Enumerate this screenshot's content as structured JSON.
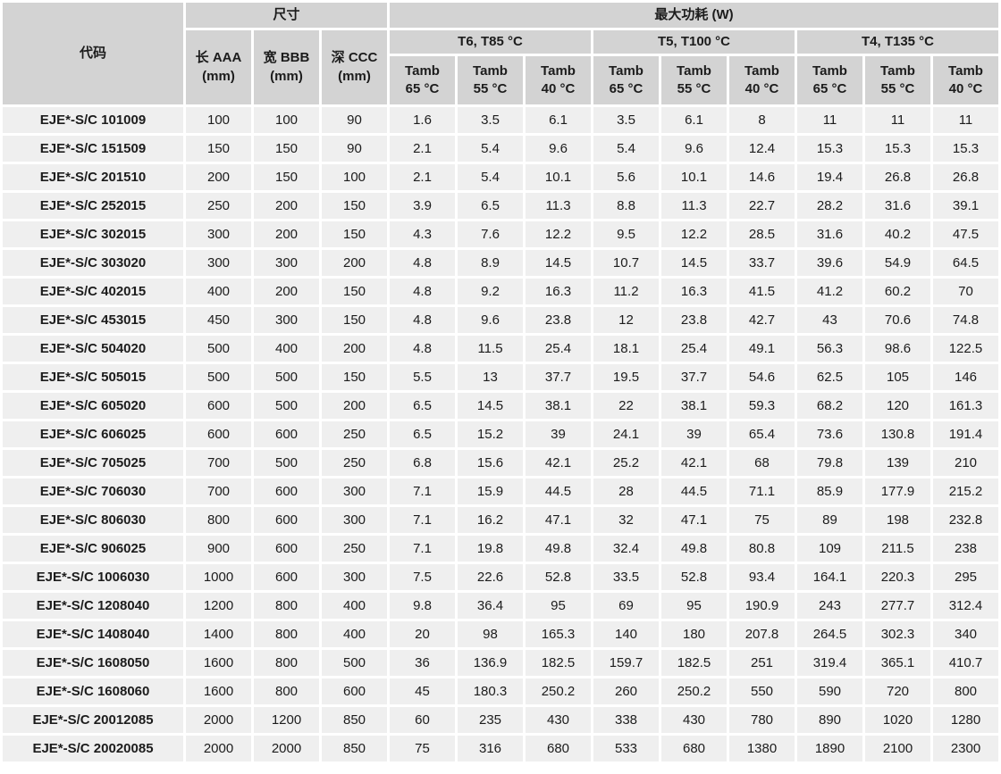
{
  "colors": {
    "header_bg": "#d3d3d3",
    "cell_bg": "#efefef",
    "gutter": "#ffffff",
    "text": "#1c1c1c"
  },
  "table": {
    "header": {
      "code": "代码",
      "dimensions": "尺寸",
      "max_power": "最大功耗 (W)",
      "dim_cols": [
        {
          "line1": "长 AAA",
          "line2": "(mm)"
        },
        {
          "line1": "宽 BBB",
          "line2": "(mm)"
        },
        {
          "line1": "深  CCC",
          "line2": "(mm)"
        }
      ],
      "temp_groups": [
        "T6, T85 °C",
        "T5, T100 °C",
        "T4, T135 °C"
      ],
      "tamb_label": "Tamb",
      "tamb_temps": [
        "65 °C",
        "55 °C",
        "40 °C"
      ]
    },
    "rows": [
      {
        "code": "EJE*-S/C 101009",
        "dims": [
          100,
          100,
          90
        ],
        "values": [
          1.6,
          3.5,
          6.1,
          3.5,
          6.1,
          8,
          11,
          11,
          11
        ]
      },
      {
        "code": "EJE*-S/C 151509",
        "dims": [
          150,
          150,
          90
        ],
        "values": [
          2.1,
          5.4,
          9.6,
          5.4,
          9.6,
          12.4,
          15.3,
          15.3,
          15.3
        ]
      },
      {
        "code": "EJE*-S/C 201510",
        "dims": [
          200,
          150,
          100
        ],
        "values": [
          2.1,
          5.4,
          10.1,
          5.6,
          10.1,
          14.6,
          19.4,
          26.8,
          26.8
        ]
      },
      {
        "code": "EJE*-S/C 252015",
        "dims": [
          250,
          200,
          150
        ],
        "values": [
          3.9,
          6.5,
          11.3,
          8.8,
          11.3,
          22.7,
          28.2,
          31.6,
          39.1
        ]
      },
      {
        "code": "EJE*-S/C 302015",
        "dims": [
          300,
          200,
          150
        ],
        "values": [
          4.3,
          7.6,
          12.2,
          9.5,
          12.2,
          28.5,
          31.6,
          40.2,
          47.5
        ]
      },
      {
        "code": "EJE*-S/C 303020",
        "dims": [
          300,
          300,
          200
        ],
        "values": [
          4.8,
          8.9,
          14.5,
          10.7,
          14.5,
          33.7,
          39.6,
          54.9,
          64.5
        ]
      },
      {
        "code": "EJE*-S/C 402015",
        "dims": [
          400,
          200,
          150
        ],
        "values": [
          4.8,
          9.2,
          16.3,
          11.2,
          16.3,
          41.5,
          41.2,
          60.2,
          70
        ]
      },
      {
        "code": "EJE*-S/C 453015",
        "dims": [
          450,
          300,
          150
        ],
        "values": [
          4.8,
          9.6,
          23.8,
          12,
          23.8,
          42.7,
          43,
          70.6,
          74.8
        ]
      },
      {
        "code": "EJE*-S/C 504020",
        "dims": [
          500,
          400,
          200
        ],
        "values": [
          4.8,
          11.5,
          25.4,
          18.1,
          25.4,
          49.1,
          56.3,
          98.6,
          122.5
        ]
      },
      {
        "code": "EJE*-S/C 505015",
        "dims": [
          500,
          500,
          150
        ],
        "values": [
          5.5,
          13,
          37.7,
          19.5,
          37.7,
          54.6,
          62.5,
          105,
          146
        ]
      },
      {
        "code": "EJE*-S/C 605020",
        "dims": [
          600,
          500,
          200
        ],
        "values": [
          6.5,
          14.5,
          38.1,
          22,
          38.1,
          59.3,
          68.2,
          120,
          161.3
        ]
      },
      {
        "code": "EJE*-S/C 606025",
        "dims": [
          600,
          600,
          250
        ],
        "values": [
          6.5,
          15.2,
          39,
          24.1,
          39,
          65.4,
          73.6,
          130.8,
          191.4
        ]
      },
      {
        "code": "EJE*-S/C 705025",
        "dims": [
          700,
          500,
          250
        ],
        "values": [
          6.8,
          15.6,
          42.1,
          25.2,
          42.1,
          68,
          79.8,
          139,
          210
        ]
      },
      {
        "code": "EJE*-S/C 706030",
        "dims": [
          700,
          600,
          300
        ],
        "values": [
          7.1,
          15.9,
          44.5,
          28,
          44.5,
          71.1,
          85.9,
          177.9,
          215.2
        ]
      },
      {
        "code": "EJE*-S/C 806030",
        "dims": [
          800,
          600,
          300
        ],
        "values": [
          7.1,
          16.2,
          47.1,
          32,
          47.1,
          75,
          89,
          198,
          232.8
        ]
      },
      {
        "code": "EJE*-S/C 906025",
        "dims": [
          900,
          600,
          250
        ],
        "values": [
          7.1,
          19.8,
          49.8,
          32.4,
          49.8,
          80.8,
          109,
          211.5,
          238
        ]
      },
      {
        "code": "EJE*-S/C 1006030",
        "dims": [
          1000,
          600,
          300
        ],
        "values": [
          7.5,
          22.6,
          52.8,
          33.5,
          52.8,
          93.4,
          164.1,
          220.3,
          295
        ]
      },
      {
        "code": "EJE*-S/C 1208040",
        "dims": [
          1200,
          800,
          400
        ],
        "values": [
          9.8,
          36.4,
          95,
          69,
          95,
          190.9,
          243,
          277.7,
          312.4
        ]
      },
      {
        "code": "EJE*-S/C 1408040",
        "dims": [
          1400,
          800,
          400
        ],
        "values": [
          20,
          98,
          165.3,
          140,
          180,
          207.8,
          264.5,
          302.3,
          340
        ]
      },
      {
        "code": "EJE*-S/C 1608050",
        "dims": [
          1600,
          800,
          500
        ],
        "values": [
          36,
          136.9,
          182.5,
          159.7,
          182.5,
          251,
          319.4,
          365.1,
          410.7
        ]
      },
      {
        "code": "EJE*-S/C 1608060",
        "dims": [
          1600,
          800,
          600
        ],
        "values": [
          45,
          180.3,
          250.2,
          260,
          250.2,
          550,
          590,
          720,
          800
        ]
      },
      {
        "code": "EJE*-S/C 20012085",
        "dims": [
          2000,
          1200,
          850
        ],
        "values": [
          60,
          235,
          430,
          338,
          430,
          780,
          890,
          1020,
          1280
        ]
      },
      {
        "code": "EJE*-S/C 20020085",
        "dims": [
          2000,
          2000,
          850
        ],
        "values": [
          75,
          316,
          680,
          533,
          680,
          1380,
          1890,
          2100,
          2300
        ]
      }
    ]
  }
}
